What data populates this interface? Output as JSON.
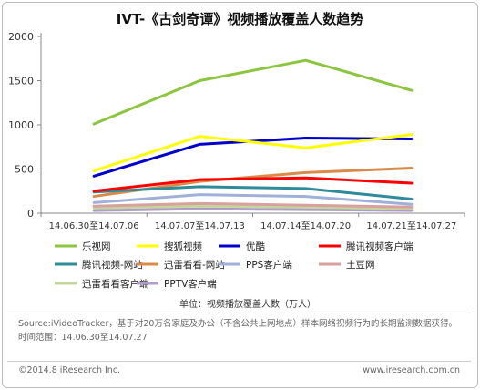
{
  "header": {
    "title": "IVT-《古剑奇谭》视频播放覆盖人数趋势"
  },
  "chart_data": {
    "type": "line",
    "title": "IVT-《古剑奇谭》视频播放覆盖人数趋势",
    "unit_label": "单位：视频播放覆盖人数（万人）",
    "categories": [
      "14.06.30至14.07.06",
      "14.07.07至14.07.13",
      "14.07.14至14.07.20",
      "14.07.21至14.07.27"
    ],
    "ylim": [
      0,
      2000
    ],
    "yticks": [
      0,
      500,
      1000,
      1500,
      2000
    ],
    "grid": false,
    "legend_position": "bottom",
    "series": [
      {
        "name": "乐视网",
        "color": "#8cc63f",
        "values": [
          1010,
          1500,
          1730,
          1390
        ]
      },
      {
        "name": "搜狐视频",
        "color": "#ffff00",
        "values": [
          480,
          870,
          740,
          890
        ]
      },
      {
        "name": "优酷",
        "color": "#0000cc",
        "values": [
          420,
          780,
          850,
          840
        ]
      },
      {
        "name": "腾讯视频客户端",
        "color": "#ff0000",
        "values": [
          250,
          380,
          400,
          340
        ]
      },
      {
        "name": "腾讯视频-网站",
        "color": "#2e8b9a",
        "values": [
          240,
          300,
          280,
          160
        ]
      },
      {
        "name": "迅雷看看-网站",
        "color": "#d98c4a",
        "values": [
          190,
          360,
          460,
          510
        ]
      },
      {
        "name": "PPS客户端",
        "color": "#a0b0d8",
        "values": [
          120,
          210,
          190,
          100
        ]
      },
      {
        "name": "土豆网",
        "color": "#d9a0a0",
        "values": [
          80,
          110,
          90,
          70
        ]
      },
      {
        "name": "迅雷看看客户端",
        "color": "#c4d79b",
        "values": [
          60,
          80,
          70,
          50
        ]
      },
      {
        "name": "PPTV客户端",
        "color": "#b09cc9",
        "values": [
          30,
          50,
          40,
          30
        ]
      }
    ]
  },
  "footer": {
    "source": "Source:iVideoTracker，基于对20万名家庭及办公（不含公共上网地点）样本网络视频行为的长期监测数据获得。",
    "time_range": "时间范围：14.06.30至14.07.27",
    "copyright": "©2014.8 iResearch Inc.",
    "website": "www.iresearch.com.cn"
  }
}
